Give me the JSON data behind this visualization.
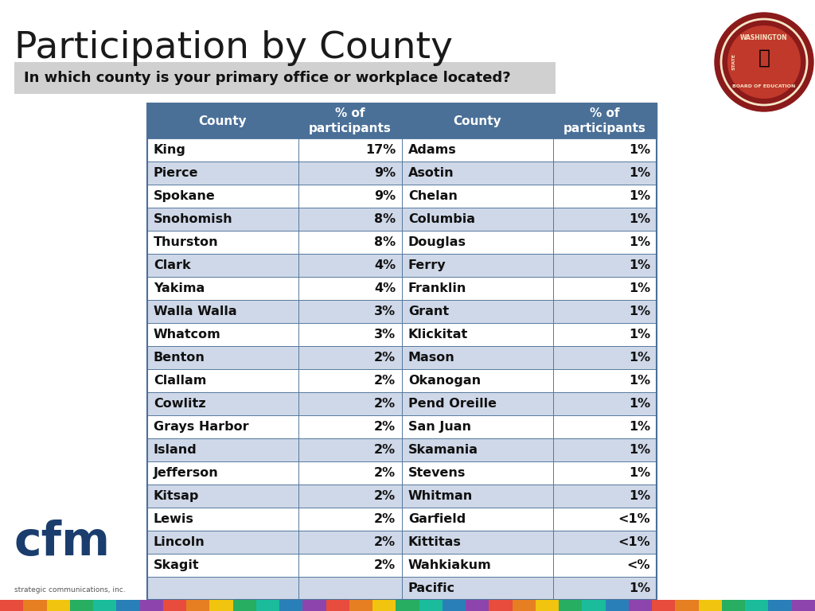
{
  "title": "Participation by County",
  "question": "In which county is your primary office or workplace located?",
  "header_bg": "#4a7098",
  "header_text_color": "#ffffff",
  "col_headers": [
    "County",
    "% of\nparticipants",
    "County",
    "% of\nparticipants"
  ],
  "left_data": [
    [
      "King",
      "17%"
    ],
    [
      "Pierce",
      "9%"
    ],
    [
      "Spokane",
      "9%"
    ],
    [
      "Snohomish",
      "8%"
    ],
    [
      "Thurston",
      "8%"
    ],
    [
      "Clark",
      "4%"
    ],
    [
      "Yakima",
      "4%"
    ],
    [
      "Walla Walla",
      "3%"
    ],
    [
      "Whatcom",
      "3%"
    ],
    [
      "Benton",
      "2%"
    ],
    [
      "Clallam",
      "2%"
    ],
    [
      "Cowlitz",
      "2%"
    ],
    [
      "Grays Harbor",
      "2%"
    ],
    [
      "Island",
      "2%"
    ],
    [
      "Jefferson",
      "2%"
    ],
    [
      "Kitsap",
      "2%"
    ],
    [
      "Lewis",
      "2%"
    ],
    [
      "Lincoln",
      "2%"
    ],
    [
      "Skagit",
      "2%"
    ],
    [
      "",
      ""
    ]
  ],
  "right_data": [
    [
      "Adams",
      "1%"
    ],
    [
      "Asotin",
      "1%"
    ],
    [
      "Chelan",
      "1%"
    ],
    [
      "Columbia",
      "1%"
    ],
    [
      "Douglas",
      "1%"
    ],
    [
      "Ferry",
      "1%"
    ],
    [
      "Franklin",
      "1%"
    ],
    [
      "Grant",
      "1%"
    ],
    [
      "Klickitat",
      "1%"
    ],
    [
      "Mason",
      "1%"
    ],
    [
      "Okanogan",
      "1%"
    ],
    [
      "Pend Oreille",
      "1%"
    ],
    [
      "San Juan",
      "1%"
    ],
    [
      "Skamania",
      "1%"
    ],
    [
      "Stevens",
      "1%"
    ],
    [
      "Whitman",
      "1%"
    ],
    [
      "Garfield",
      "<1%"
    ],
    [
      "Kittitas",
      "<1%"
    ],
    [
      "Wahkiakum",
      "<%"
    ],
    [
      "Pacific",
      "1%"
    ]
  ],
  "row_colors_even": "#ffffff",
  "row_colors_odd": "#cfd8e8",
  "border_color": "#4a7098",
  "question_bg": "#d0d0d0",
  "title_fontsize": 34,
  "question_fontsize": 13,
  "table_fontsize": 11.5,
  "header_fontsize": 11,
  "bg_color": "#ffffff",
  "footer_colors": [
    "#e74c3c",
    "#e67e22",
    "#f1c40f",
    "#27ae60",
    "#1abc9c",
    "#2980b9",
    "#8e44ad",
    "#e74c3c",
    "#e67e22",
    "#f1c40f",
    "#27ae60",
    "#1abc9c",
    "#2980b9",
    "#8e44ad",
    "#e74c3c",
    "#e67e22",
    "#f1c40f",
    "#27ae60",
    "#1abc9c",
    "#2980b9",
    "#8e44ad",
    "#e74c3c",
    "#e67e22",
    "#f1c40f",
    "#27ae60",
    "#1abc9c",
    "#2980b9",
    "#8e44ad",
    "#e74c3c",
    "#e67e22",
    "#f1c40f",
    "#27ae60",
    "#1abc9c",
    "#2980b9",
    "#8e44ad"
  ],
  "cfm_color": "#1a3d6e",
  "cfm_sub_color": "#555555"
}
